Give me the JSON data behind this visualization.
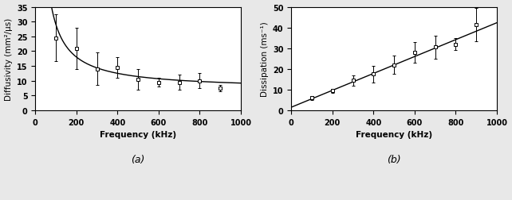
{
  "panel_a": {
    "xlabel": "Frequency (kHz)",
    "ylabel": "Diffusivity (mm²/μs)",
    "xlim": [
      0,
      1000
    ],
    "ylim": [
      0,
      35
    ],
    "xticks": [
      0,
      200,
      400,
      600,
      800,
      1000
    ],
    "yticks": [
      0,
      5,
      10,
      15,
      20,
      25,
      30,
      35
    ],
    "data_x": [
      100,
      200,
      300,
      400,
      500,
      600,
      700,
      800,
      900
    ],
    "data_y": [
      24.5,
      21.0,
      14.0,
      14.5,
      10.5,
      9.5,
      9.5,
      10.0,
      7.5
    ],
    "data_yerr": [
      8.0,
      7.0,
      5.5,
      3.5,
      3.5,
      1.5,
      2.5,
      2.5,
      1.0
    ],
    "curve_A": 2200,
    "curve_B": 7.0,
    "label": "(a)"
  },
  "panel_b": {
    "xlabel": "Frequency (kHz)",
    "ylabel": "Dissipation (ms⁻¹)",
    "xlim": [
      0,
      1000
    ],
    "ylim": [
      0,
      50
    ],
    "xticks": [
      0,
      200,
      400,
      600,
      800,
      1000
    ],
    "yticks": [
      0,
      10,
      20,
      30,
      40,
      50
    ],
    "data_x": [
      100,
      200,
      300,
      400,
      500,
      600,
      700,
      800,
      900
    ],
    "data_y": [
      6.0,
      9.5,
      14.5,
      17.5,
      22.0,
      28.0,
      30.5,
      32.0,
      41.5
    ],
    "data_yerr": [
      1.0,
      1.0,
      2.5,
      4.0,
      4.5,
      5.0,
      5.5,
      3.0,
      8.0
    ],
    "line_slope": 0.0408,
    "line_intercept": 1.5,
    "label": "(b)"
  },
  "bg_color": "#e8e8e8",
  "plot_bg_color": "#ffffff",
  "marker_style": "s",
  "marker_size": 2.5,
  "marker_color": "black",
  "marker_facecolor": "white",
  "line_color": "black",
  "line_width": 1.0,
  "errorbar_capsize": 1.5,
  "errorbar_linewidth": 0.7,
  "label_fontsize": 7.5,
  "tick_fontsize": 7,
  "sublabel_fontsize": 9,
  "tick_fontweight": "bold"
}
